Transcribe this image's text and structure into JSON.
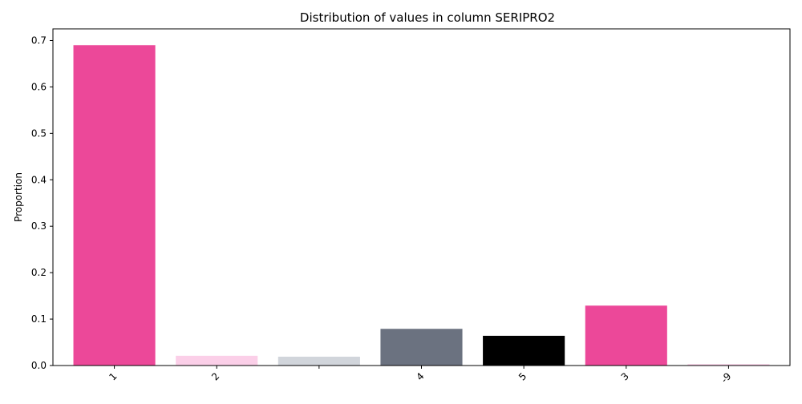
{
  "chart_data": {
    "type": "bar",
    "title": "Distribution of values in column SERIPRO2",
    "xlabel": "",
    "ylabel": "Proportion",
    "ylim": [
      0,
      0.725
    ],
    "yticks": [
      0.0,
      0.1,
      0.2,
      0.3,
      0.4,
      0.5,
      0.6,
      0.7
    ],
    "ytick_labels": [
      "0.0",
      "0.1",
      "0.2",
      "0.3",
      "0.4",
      "0.5",
      "0.6",
      "0.7"
    ],
    "categories": [
      "1",
      "2",
      "",
      "4",
      "5",
      "3",
      "-9"
    ],
    "values": [
      0.69,
      0.021,
      0.019,
      0.079,
      0.064,
      0.129,
      0.003
    ],
    "colors": [
      "#ec4899",
      "#fbcfe8",
      "#d1d5db",
      "#6b7280",
      "#000000",
      "#ec4899",
      "#fbcfe8"
    ],
    "grid": false,
    "legend": "none"
  }
}
